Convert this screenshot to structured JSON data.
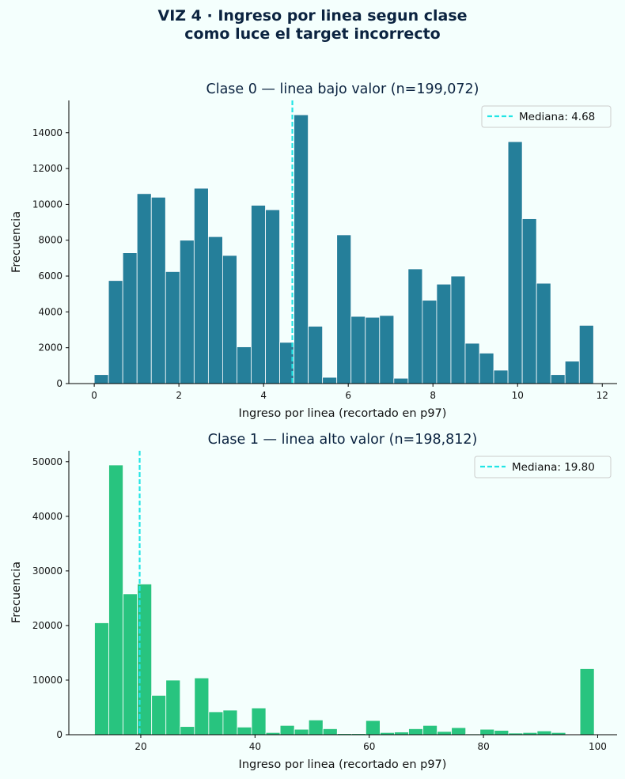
{
  "suptitle": {
    "line1": "VIZ 4 · Ingreso por linea segun clase",
    "line2": "como luce el target incorrecto"
  },
  "colors": {
    "background": "#f4fffd",
    "median_line": "#22e5e5",
    "title": "#0b2340"
  },
  "chart_data": [
    {
      "type": "bar",
      "title": "Clase 0 — linea bajo valor  (n=199,072)",
      "xlabel": "Ingreso por linea (recortado en p97)",
      "ylabel": "Frecuencia",
      "color": "#257f9a",
      "xlim": [
        -0.6,
        12.35
      ],
      "ylim": [
        0,
        15800
      ],
      "xticks": [
        0,
        2,
        4,
        6,
        8,
        10,
        12
      ],
      "yticks": [
        0,
        2000,
        4000,
        6000,
        8000,
        10000,
        12000,
        14000
      ],
      "bin_width": 0.337,
      "bins": [
        {
          "x0": 0.0,
          "value": 500
        },
        {
          "x0": 0.337,
          "value": 5750
        },
        {
          "x0": 0.674,
          "value": 7300
        },
        {
          "x0": 1.011,
          "value": 10600
        },
        {
          "x0": 1.348,
          "value": 10400
        },
        {
          "x0": 1.685,
          "value": 6250
        },
        {
          "x0": 2.022,
          "value": 8000
        },
        {
          "x0": 2.359,
          "value": 10900
        },
        {
          "x0": 2.696,
          "value": 8200
        },
        {
          "x0": 3.033,
          "value": 7150
        },
        {
          "x0": 3.37,
          "value": 2050
        },
        {
          "x0": 3.707,
          "value": 9950
        },
        {
          "x0": 4.044,
          "value": 9700
        },
        {
          "x0": 4.381,
          "value": 2300
        },
        {
          "x0": 4.718,
          "value": 15000
        },
        {
          "x0": 5.055,
          "value": 3200
        },
        {
          "x0": 5.392,
          "value": 350
        },
        {
          "x0": 5.729,
          "value": 8300
        },
        {
          "x0": 6.066,
          "value": 3750
        },
        {
          "x0": 6.403,
          "value": 3700
        },
        {
          "x0": 6.74,
          "value": 3800
        },
        {
          "x0": 7.077,
          "value": 300
        },
        {
          "x0": 7.414,
          "value": 6400
        },
        {
          "x0": 7.751,
          "value": 4650
        },
        {
          "x0": 8.088,
          "value": 5550
        },
        {
          "x0": 8.425,
          "value": 6000
        },
        {
          "x0": 8.762,
          "value": 2250
        },
        {
          "x0": 9.099,
          "value": 1700
        },
        {
          "x0": 9.436,
          "value": 750
        },
        {
          "x0": 9.773,
          "value": 13500
        },
        {
          "x0": 10.11,
          "value": 9200
        },
        {
          "x0": 10.447,
          "value": 5600
        },
        {
          "x0": 10.784,
          "value": 500
        },
        {
          "x0": 11.121,
          "value": 1250
        },
        {
          "x0": 11.458,
          "value": 3250
        }
      ],
      "median": 4.68,
      "legend": {
        "label": "Mediana: 4.68",
        "position": "upper right"
      }
    },
    {
      "type": "bar",
      "title": "Clase 1 — linea alto valor  (n=198,812)",
      "xlabel": "Ingreso por linea (recortado en p97)",
      "ylabel": "Frecuencia",
      "color": "#28c47f",
      "xlim": [
        7.4,
        103.4
      ],
      "ylim": [
        0,
        52000
      ],
      "xticks": [
        20,
        40,
        60,
        80,
        100
      ],
      "yticks": [
        0,
        10000,
        20000,
        30000,
        40000,
        50000
      ],
      "bin_width": 2.5,
      "bins": [
        {
          "x0": 11.9,
          "value": 20500
        },
        {
          "x0": 14.4,
          "value": 49400
        },
        {
          "x0": 16.9,
          "value": 25800
        },
        {
          "x0": 19.4,
          "value": 27600
        },
        {
          "x0": 21.9,
          "value": 7200
        },
        {
          "x0": 24.4,
          "value": 10000
        },
        {
          "x0": 26.9,
          "value": 1500
        },
        {
          "x0": 29.4,
          "value": 10400
        },
        {
          "x0": 31.9,
          "value": 4200
        },
        {
          "x0": 34.4,
          "value": 4500
        },
        {
          "x0": 36.9,
          "value": 1400
        },
        {
          "x0": 39.4,
          "value": 4900
        },
        {
          "x0": 41.9,
          "value": 400
        },
        {
          "x0": 44.4,
          "value": 1700
        },
        {
          "x0": 46.9,
          "value": 1000
        },
        {
          "x0": 49.4,
          "value": 2700
        },
        {
          "x0": 51.9,
          "value": 1100
        },
        {
          "x0": 54.4,
          "value": 200
        },
        {
          "x0": 56.9,
          "value": 200
        },
        {
          "x0": 59.4,
          "value": 2600
        },
        {
          "x0": 61.9,
          "value": 400
        },
        {
          "x0": 64.4,
          "value": 500
        },
        {
          "x0": 66.9,
          "value": 1100
        },
        {
          "x0": 69.4,
          "value": 1700
        },
        {
          "x0": 71.9,
          "value": 600
        },
        {
          "x0": 74.4,
          "value": 1300
        },
        {
          "x0": 76.9,
          "value": 150
        },
        {
          "x0": 79.4,
          "value": 1000
        },
        {
          "x0": 81.9,
          "value": 800
        },
        {
          "x0": 84.4,
          "value": 300
        },
        {
          "x0": 86.9,
          "value": 400
        },
        {
          "x0": 89.4,
          "value": 700
        },
        {
          "x0": 91.9,
          "value": 400
        },
        {
          "x0": 94.4,
          "value": 100
        },
        {
          "x0": 96.9,
          "value": 12100
        }
      ],
      "median": 19.8,
      "legend": {
        "label": "Mediana: 19.80",
        "position": "upper right"
      }
    }
  ]
}
